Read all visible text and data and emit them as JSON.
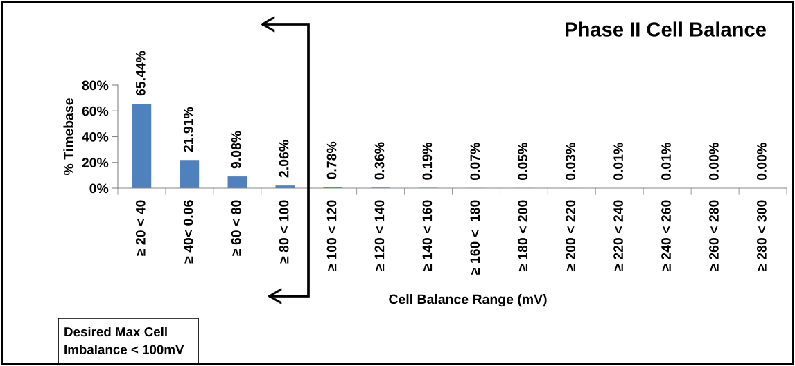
{
  "chart_data": {
    "type": "bar",
    "title": "Phase II Cell Balance",
    "xlabel": "Cell Balance Range (mV)",
    "ylabel": "% Timebase",
    "categories": [
      "≥ 20 < 40",
      "≥ 40< 0.06",
      "≥ 60 < 80",
      "≥ 80 < 100",
      "≥ 100 < 120",
      "≥ 120 < 140",
      "≥ 140 < 160",
      "≥ 160 <  180",
      "≥ 180 < 200",
      "≥ 200 < 220",
      "≥ 220 < 240",
      "≥ 240 < 260",
      "≥ 260 < 280",
      "≥ 280 < 300"
    ],
    "values": [
      65.44,
      21.91,
      9.08,
      2.06,
      0.78,
      0.36,
      0.19,
      0.07,
      0.05,
      0.03,
      0.01,
      0.01,
      0.0,
      0.0
    ],
    "value_labels": [
      "65.44%",
      "21.91%",
      "9.08%",
      "2.06%",
      "0.78%",
      "0.36%",
      "0.19%",
      "0.07%",
      "0.05%",
      "0.03%",
      "0.01%",
      "0.01%",
      "0.00%",
      "0.00%"
    ],
    "color": "#4f81bd",
    "ylim": [
      0,
      80
    ],
    "yticks": [
      {
        "value": 0,
        "label": "0%"
      },
      {
        "value": 20,
        "label": "20%"
      },
      {
        "value": 40,
        "label": "40%"
      },
      {
        "value": 60,
        "label": "60%"
      },
      {
        "value": 80,
        "label": "80%"
      }
    ],
    "grid": false,
    "annotations": [
      "Desired Max Cell\nImbalance < 100mV"
    ]
  }
}
